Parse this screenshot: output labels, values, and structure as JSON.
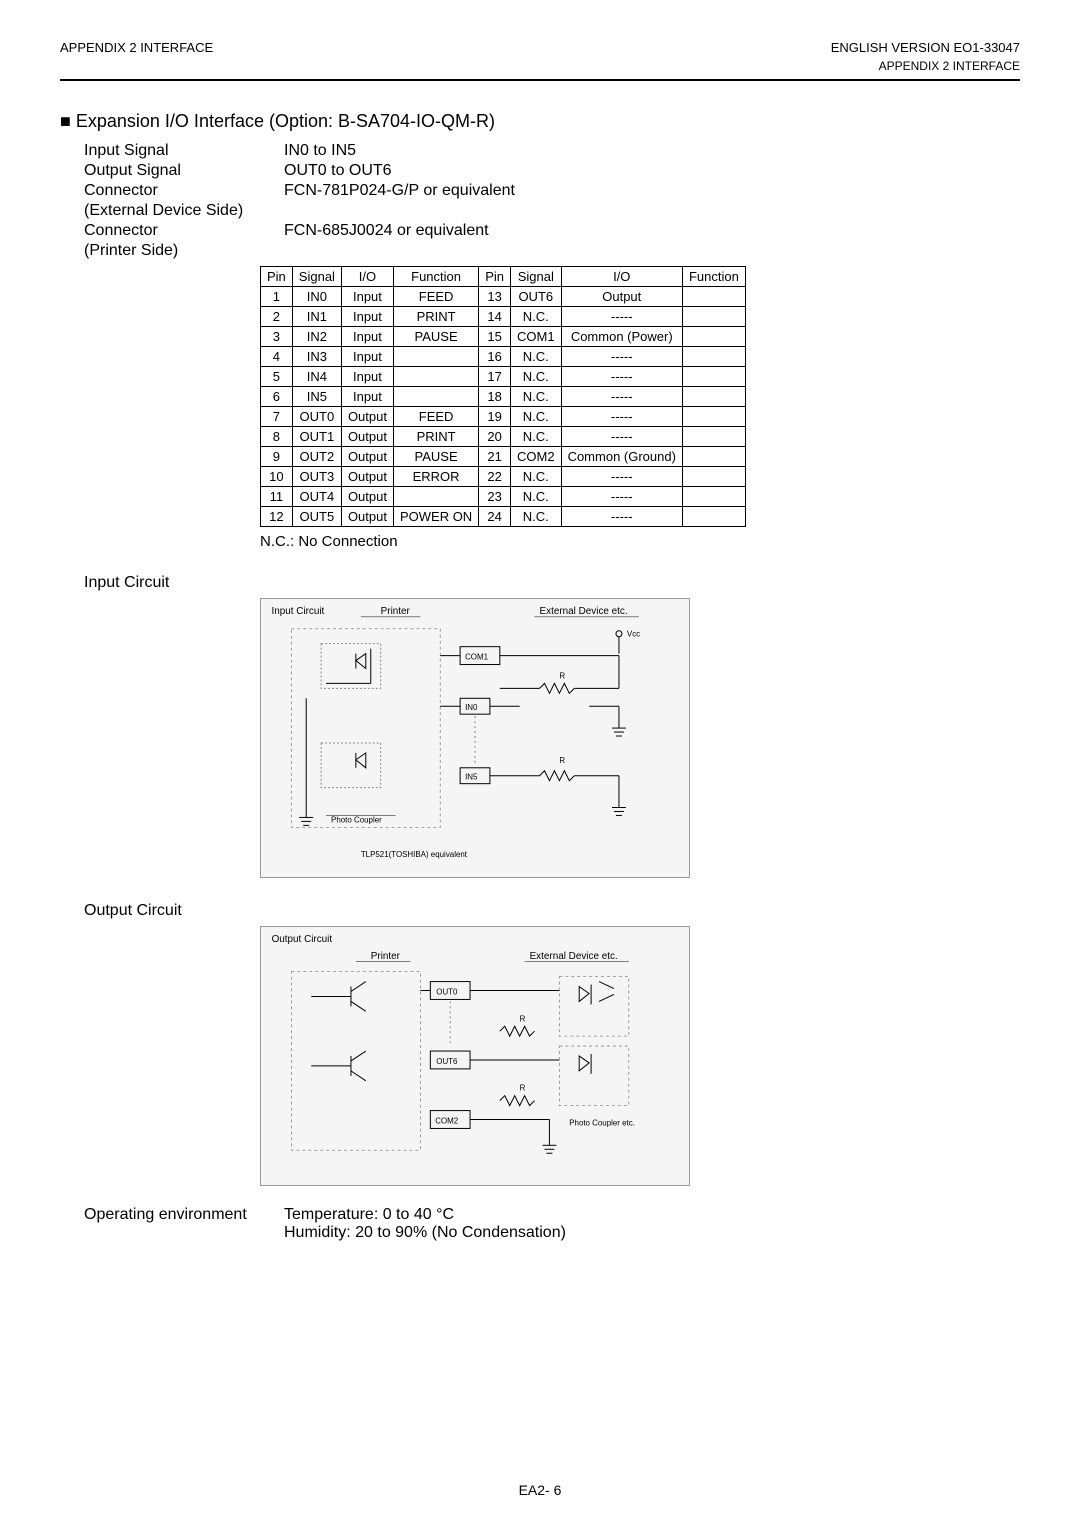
{
  "header": {
    "left": "APPENDIX 2  INTERFACE",
    "right": "ENGLISH VERSION EO1-33047",
    "sub": "APPENDIX 2  INTERFACE"
  },
  "section_title": "■  Expansion I/O Interface (Option: B-SA704-IO-QM-R)",
  "specs": {
    "input_signal": {
      "label": "Input Signal",
      "value": "IN0 to IN5"
    },
    "output_signal": {
      "label": "Output Signal",
      "value": "OUT0 to OUT6"
    },
    "connector1": {
      "label": "Connector",
      "value": "FCN-781P024-G/P or equivalent"
    },
    "ext_side": {
      "label": "(External Device Side)",
      "value": ""
    },
    "connector2": {
      "label": "Connector",
      "value": "FCN-685J0024 or equivalent"
    },
    "printer_side": {
      "label": "(Printer Side)",
      "value": ""
    }
  },
  "pin_table": {
    "headers": [
      "Pin",
      "Signal",
      "I/O",
      "Function",
      "Pin",
      "Signal",
      "I/O",
      "Function"
    ],
    "rows": [
      [
        "1",
        "IN0",
        "Input",
        "FEED",
        "13",
        "OUT6",
        "Output",
        ""
      ],
      [
        "2",
        "IN1",
        "Input",
        "PRINT",
        "14",
        "N.C.",
        "-----",
        ""
      ],
      [
        "3",
        "IN2",
        "Input",
        "PAUSE",
        "15",
        "COM1",
        "Common (Power)",
        ""
      ],
      [
        "4",
        "IN3",
        "Input",
        "",
        "16",
        "N.C.",
        "-----",
        ""
      ],
      [
        "5",
        "IN4",
        "Input",
        "",
        "17",
        "N.C.",
        "-----",
        ""
      ],
      [
        "6",
        "IN5",
        "Input",
        "",
        "18",
        "N.C.",
        "-----",
        ""
      ],
      [
        "7",
        "OUT0",
        "Output",
        "FEED",
        "19",
        "N.C.",
        "-----",
        ""
      ],
      [
        "8",
        "OUT1",
        "Output",
        "PRINT",
        "20",
        "N.C.",
        "-----",
        ""
      ],
      [
        "9",
        "OUT2",
        "Output",
        "PAUSE",
        "21",
        "COM2",
        "Common (Ground)",
        ""
      ],
      [
        "10",
        "OUT3",
        "Output",
        "ERROR",
        "22",
        "N.C.",
        "-----",
        ""
      ],
      [
        "11",
        "OUT4",
        "Output",
        "",
        "23",
        "N.C.",
        "-----",
        ""
      ],
      [
        "12",
        "OUT5",
        "Output",
        "POWER ON",
        "24",
        "N.C.",
        "-----",
        ""
      ]
    ]
  },
  "nc_note": "N.C.: No Connection",
  "circuits": {
    "input_label": "Input Circuit",
    "output_label": "Output Circuit",
    "input_svg": {
      "title": "Input Circuit",
      "printer": "Printer",
      "external": "External Device etc.",
      "vcc": "Vcc",
      "com1": "COM1",
      "in0": "IN0",
      "in5": "IN5",
      "r": "R",
      "photo": "Photo Coupler",
      "tlp": "TLP521(TOSHIBA) equivalent"
    },
    "output_svg": {
      "title": "Output Circuit",
      "printer": "Printer",
      "external": "External Device etc.",
      "out0": "OUT0",
      "out6": "OUT6",
      "com2": "COM2",
      "r": "R",
      "photo": "Photo Coupler etc."
    }
  },
  "op_env": {
    "label": "Operating environment",
    "temp": "Temperature: 0 to 40 °C",
    "humidity": "Humidity: 20 to 90% (No Condensation)"
  },
  "footer": "EA2- 6"
}
